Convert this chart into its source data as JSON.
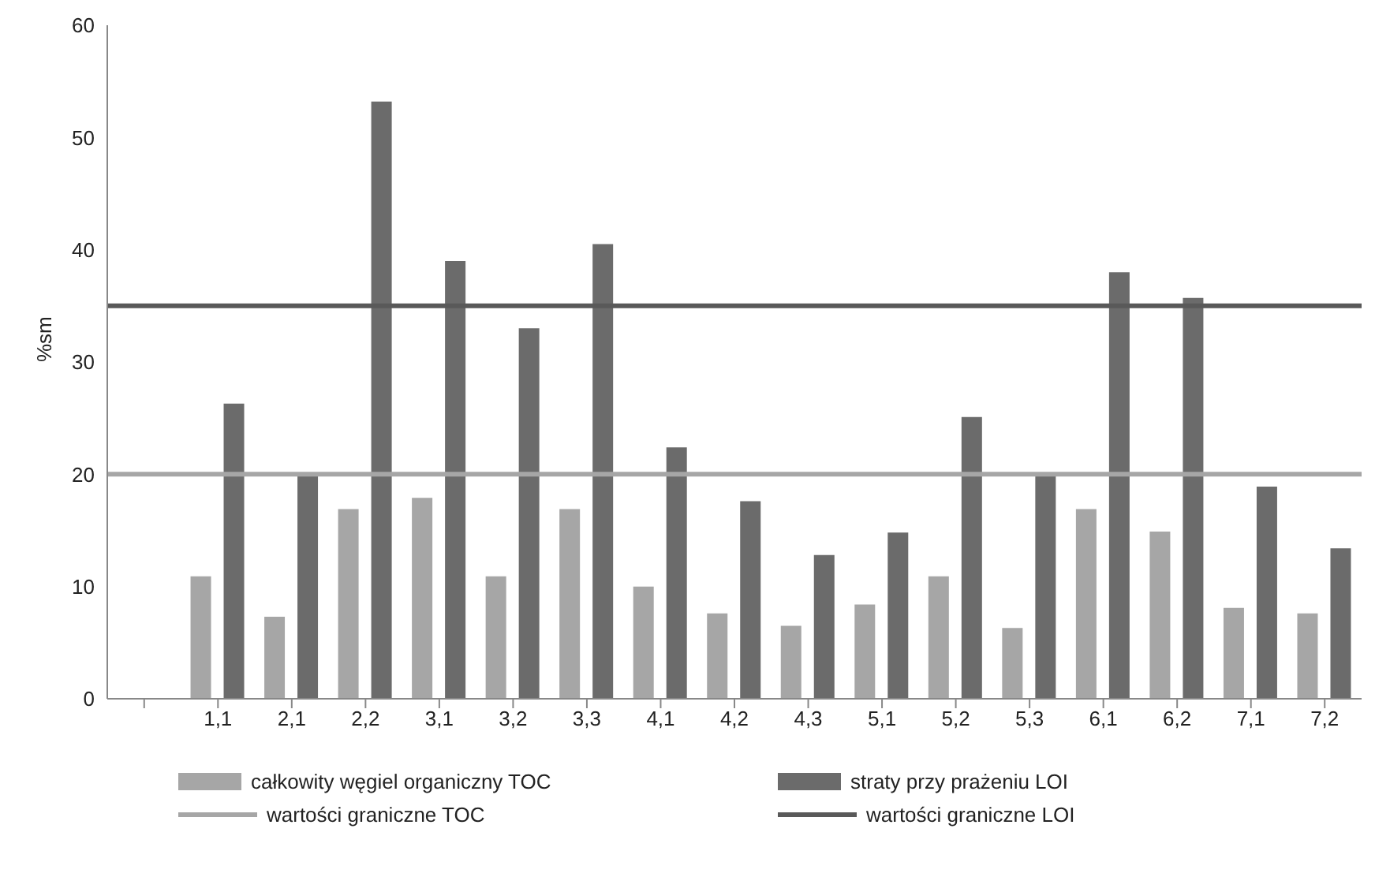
{
  "chart_data": {
    "type": "bar",
    "ylabel": "%sm",
    "categories": [
      null,
      "1,1",
      "2,1",
      "2,2",
      "3,1",
      "3,2",
      "3,3",
      "4,1",
      "4,2",
      "4,3",
      "5,1",
      "5,2",
      "5,3",
      "6,1",
      "6,2",
      "7,1",
      "7,2"
    ],
    "series": [
      {
        "name": "całkowity węgiel organiczny TOC",
        "color": "#a6a6a6",
        "values": [
          null,
          10.9,
          7.3,
          16.9,
          17.9,
          10.9,
          16.9,
          10.0,
          7.6,
          6.5,
          8.4,
          10.9,
          6.3,
          16.9,
          14.9,
          8.1,
          7.6
        ]
      },
      {
        "name": "straty przy prażeniu LOI",
        "color": "#6b6b6b",
        "values": [
          null,
          26.3,
          20.0,
          53.2,
          39.0,
          33.0,
          40.5,
          22.4,
          17.6,
          12.8,
          14.8,
          25.1,
          20.0,
          38.0,
          35.7,
          18.9,
          13.4
        ]
      }
    ],
    "ref_lines": [
      {
        "axis": "y",
        "value": 20,
        "label": "wartości graniczne TOC",
        "color": "#a6a6a6"
      },
      {
        "axis": "y",
        "value": 35,
        "label": "wartości graniczne LOI",
        "color": "#595959"
      }
    ],
    "ylim": [
      0,
      60
    ],
    "yticks": [
      0,
      10,
      20,
      30,
      40,
      50,
      60
    ],
    "grid": false,
    "legend": "bottom"
  }
}
